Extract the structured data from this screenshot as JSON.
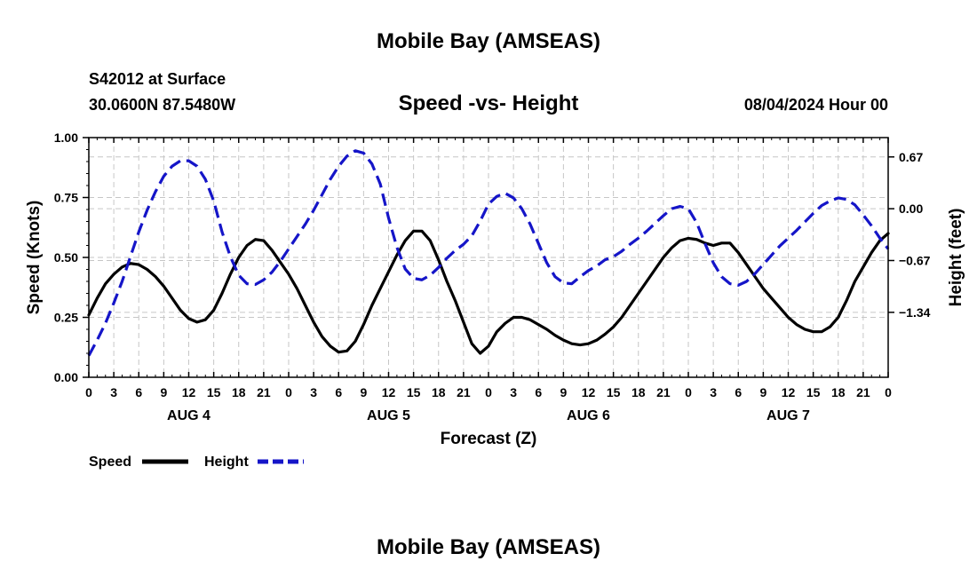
{
  "header": {
    "title": "Mobile Bay (AMSEAS)",
    "station": "S42012 at Surface",
    "location": "30.0600N  87.5480W",
    "subtitle": "Speed -vs- Height",
    "datetime": "08/04/2024 Hour 00"
  },
  "footer": {
    "title": "Mobile Bay (AMSEAS)"
  },
  "colors": {
    "speed": "#000000",
    "height": "#1515c8",
    "grid": "#c6c6c6"
  },
  "chart_data": {
    "type": "line",
    "xlabel": "Forecast (Z)",
    "ylabel_left": "Speed (Knots)",
    "ylabel_right": "Height (feet)",
    "x_unit": "hours from 08/04/2024 00Z",
    "xlim": [
      0,
      96
    ],
    "ylim_left": [
      0,
      1
    ],
    "ylim_right": [
      -2.18,
      0.92
    ],
    "grid": true,
    "legend_position": "bottom-left",
    "x_tick_labels": [
      "0",
      "3",
      "6",
      "9",
      "12",
      "15",
      "18",
      "21",
      "0",
      "3",
      "6",
      "9",
      "12",
      "15",
      "18",
      "21",
      "0",
      "3",
      "6",
      "9",
      "12",
      "15",
      "18",
      "21",
      "0",
      "3",
      "6",
      "9",
      "12",
      "15",
      "18",
      "21",
      "0"
    ],
    "day_labels": [
      {
        "label": "AUG 4",
        "hour": 12
      },
      {
        "label": "AUG 5",
        "hour": 36
      },
      {
        "label": "AUG 6",
        "hour": 60
      },
      {
        "label": "AUG 7",
        "hour": 84
      }
    ],
    "y_left_ticks": [
      "0.00",
      "0.25",
      "0.50",
      "0.75",
      "1.00"
    ],
    "y_right_ticks": [
      "0.67",
      "0.00",
      "−0.67",
      "−1.34"
    ],
    "y_right_tick_values": [
      0.67,
      0.0,
      -0.67,
      -1.34
    ],
    "series": [
      {
        "name": "Speed",
        "axis": "left",
        "style": "solid",
        "x": [
          0,
          1,
          2,
          3,
          4,
          5,
          6,
          7,
          8,
          9,
          10,
          11,
          12,
          13,
          14,
          15,
          16,
          17,
          18,
          19,
          20,
          21,
          22,
          23,
          24,
          25,
          26,
          27,
          28,
          29,
          30,
          31,
          32,
          33,
          34,
          35,
          36,
          37,
          38,
          39,
          40,
          41,
          42,
          43,
          44,
          45,
          46,
          47,
          48,
          49,
          50,
          51,
          52,
          53,
          54,
          55,
          56,
          57,
          58,
          59,
          60,
          61,
          62,
          63,
          64,
          65,
          66,
          67,
          68,
          69,
          70,
          71,
          72,
          73,
          74,
          75,
          76,
          77,
          78,
          79,
          80,
          81,
          82,
          83,
          84,
          85,
          86,
          87,
          88,
          89,
          90,
          91,
          92,
          93,
          94,
          95,
          96
        ],
        "y": [
          0.26,
          0.33,
          0.39,
          0.43,
          0.46,
          0.475,
          0.47,
          0.45,
          0.42,
          0.38,
          0.33,
          0.28,
          0.245,
          0.23,
          0.24,
          0.28,
          0.35,
          0.43,
          0.5,
          0.55,
          0.575,
          0.57,
          0.53,
          0.48,
          0.43,
          0.37,
          0.3,
          0.23,
          0.17,
          0.13,
          0.105,
          0.11,
          0.15,
          0.22,
          0.3,
          0.37,
          0.44,
          0.51,
          0.57,
          0.61,
          0.61,
          0.57,
          0.49,
          0.4,
          0.32,
          0.23,
          0.14,
          0.1,
          0.13,
          0.19,
          0.225,
          0.25,
          0.25,
          0.24,
          0.22,
          0.2,
          0.175,
          0.155,
          0.14,
          0.135,
          0.14,
          0.155,
          0.18,
          0.21,
          0.25,
          0.3,
          0.35,
          0.4,
          0.45,
          0.5,
          0.54,
          0.57,
          0.58,
          0.575,
          0.56,
          0.55,
          0.56,
          0.56,
          0.52,
          0.47,
          0.42,
          0.37,
          0.33,
          0.29,
          0.25,
          0.22,
          0.2,
          0.19,
          0.19,
          0.21,
          0.25,
          0.32,
          0.4,
          0.46,
          0.52,
          0.57,
          0.6
        ]
      },
      {
        "name": "Height",
        "axis": "right",
        "style": "dashed",
        "x": [
          0,
          1,
          2,
          3,
          4,
          5,
          6,
          7,
          8,
          9,
          10,
          11,
          12,
          13,
          14,
          15,
          16,
          17,
          18,
          19,
          20,
          21,
          22,
          23,
          24,
          25,
          26,
          27,
          28,
          29,
          30,
          31,
          32,
          33,
          34,
          35,
          36,
          37,
          38,
          39,
          40,
          41,
          42,
          43,
          44,
          45,
          46,
          47,
          48,
          49,
          50,
          51,
          52,
          53,
          54,
          55,
          56,
          57,
          58,
          59,
          60,
          61,
          62,
          63,
          64,
          65,
          66,
          67,
          68,
          69,
          70,
          71,
          72,
          73,
          74,
          75,
          76,
          77,
          78,
          79,
          80,
          81,
          82,
          83,
          84,
          85,
          86,
          87,
          88,
          89,
          90,
          91,
          92,
          93,
          94,
          95,
          96
        ],
        "y": [
          -1.9,
          -1.7,
          -1.48,
          -1.22,
          -0.94,
          -0.62,
          -0.3,
          -0.02,
          0.22,
          0.42,
          0.55,
          0.62,
          0.62,
          0.55,
          0.38,
          0.1,
          -0.3,
          -0.62,
          -0.86,
          -0.97,
          -0.98,
          -0.92,
          -0.82,
          -0.68,
          -0.52,
          -0.36,
          -0.2,
          -0.02,
          0.18,
          0.38,
          0.55,
          0.68,
          0.75,
          0.72,
          0.58,
          0.32,
          -0.12,
          -0.5,
          -0.78,
          -0.9,
          -0.92,
          -0.86,
          -0.76,
          -0.64,
          -0.54,
          -0.46,
          -0.35,
          -0.16,
          0.06,
          0.16,
          0.2,
          0.14,
          0.0,
          -0.2,
          -0.45,
          -0.7,
          -0.88,
          -0.96,
          -0.97,
          -0.88,
          -0.8,
          -0.74,
          -0.66,
          -0.62,
          -0.55,
          -0.46,
          -0.38,
          -0.29,
          -0.19,
          -0.09,
          0.0,
          0.03,
          0.0,
          -0.18,
          -0.45,
          -0.7,
          -0.88,
          -0.97,
          -0.99,
          -0.94,
          -0.84,
          -0.72,
          -0.6,
          -0.48,
          -0.38,
          -0.28,
          -0.17,
          -0.06,
          0.04,
          0.1,
          0.14,
          0.12,
          0.05,
          -0.08,
          -0.22,
          -0.38,
          -0.52
        ]
      }
    ]
  }
}
